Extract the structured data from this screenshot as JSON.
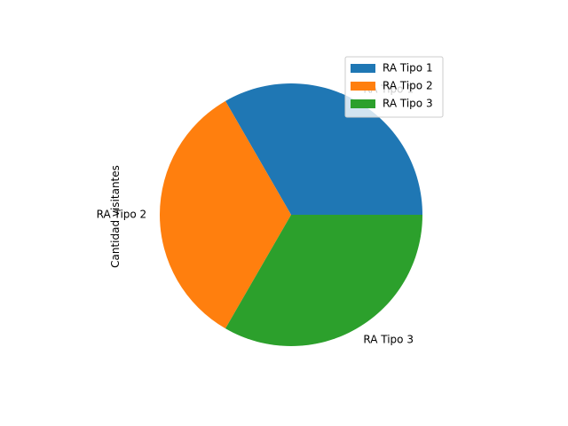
{
  "chart_data": {
    "type": "pie",
    "title": "",
    "ylabel": "Cantidad visitantes",
    "categories": [
      "RA Tipo 1",
      "RA Tipo 2",
      "RA Tipo 3"
    ],
    "values": [
      1,
      1,
      1
    ],
    "colors": [
      "#1f77b4",
      "#ff7f0e",
      "#2ca02c"
    ],
    "start_angle": 0,
    "direction": "counterclockwise",
    "legend": {
      "position": "top-right",
      "entries": [
        "RA Tipo 1",
        "RA Tipo 2",
        "RA Tipo 3"
      ]
    }
  }
}
